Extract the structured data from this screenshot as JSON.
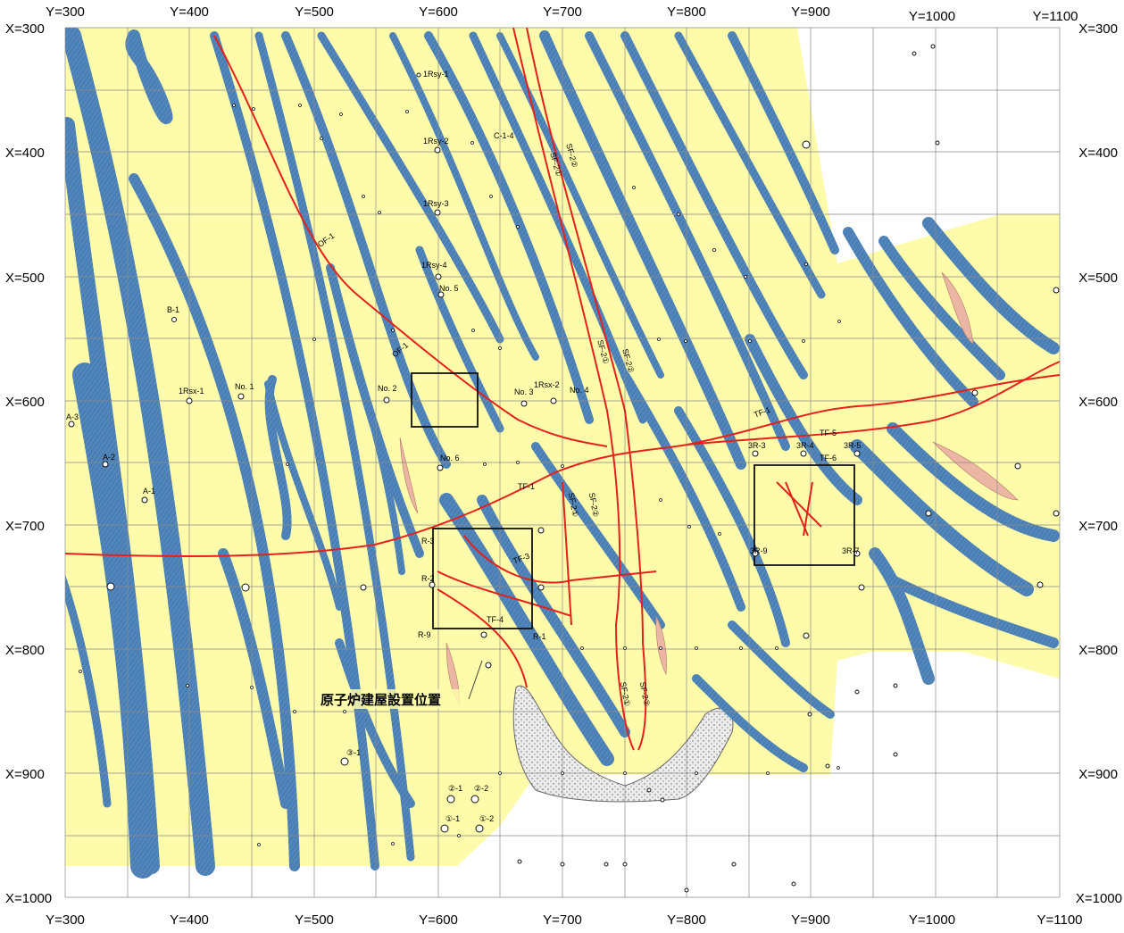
{
  "map": {
    "colors": {
      "base": "#fefbaa",
      "seam": "#4a7fb5",
      "fault": "#e4211c",
      "grid": "#8a8a8a",
      "excavation": "#e8e8e8",
      "dike": "#ecb6a4"
    },
    "top_y_labels": [
      "Y=300",
      "Y=400",
      "Y=500",
      "Y=600",
      "Y=700",
      "Y=800",
      "Y=900",
      "Y=1000",
      "Y=1100"
    ],
    "bottom_y_labels": [
      "Y=300",
      "Y=400",
      "Y=500",
      "Y=600",
      "Y=700",
      "Y=800",
      "Y=900",
      "Y=1000",
      "Y=1100"
    ],
    "left_x_labels": [
      "X=300",
      "X=400",
      "X=500",
      "X=600",
      "X=700",
      "X=800",
      "X=900",
      "X=1000"
    ],
    "right_x_labels": [
      "X=300",
      "X=400",
      "X=500",
      "X=600",
      "X=700",
      "X=800",
      "X=900",
      "X=1000"
    ],
    "callout_text": "原子炉建屋設置位置",
    "fault_labels": [
      {
        "id": "of1-a",
        "text": "OF-1"
      },
      {
        "id": "of1-b",
        "text": "OF-1"
      },
      {
        "id": "sf21-a",
        "text": "SF-2①"
      },
      {
        "id": "sf22-a",
        "text": "SF-2②"
      },
      {
        "id": "sf21-b",
        "text": "SF-2①"
      },
      {
        "id": "sf22-b",
        "text": "SF-2②"
      },
      {
        "id": "sf21-c",
        "text": "SF-2①"
      },
      {
        "id": "sf22-c",
        "text": "SF-2②"
      },
      {
        "id": "sf21-d",
        "text": "SF-2①"
      },
      {
        "id": "sf22-d",
        "text": "SF-2②"
      },
      {
        "id": "tf1-a",
        "text": "TF-1"
      },
      {
        "id": "tf1-b",
        "text": "TF-1"
      },
      {
        "id": "tf5",
        "text": "TF-5"
      },
      {
        "id": "tf6",
        "text": "TF-6"
      },
      {
        "id": "tf4",
        "text": "TF-4"
      },
      {
        "id": "tf3",
        "text": "TF-3"
      }
    ],
    "borehole_labels": [
      {
        "id": "1rsy1",
        "text": "1Rsy-1"
      },
      {
        "id": "1rsy2",
        "text": "1Rsy-2"
      },
      {
        "id": "1rsy3",
        "text": "1Rsy-3"
      },
      {
        "id": "1rsy4",
        "text": "1Rsy-4"
      },
      {
        "id": "no5",
        "text": "No. 5"
      },
      {
        "id": "b1",
        "text": "B-1"
      },
      {
        "id": "1rsx1",
        "text": "1Rsx-1"
      },
      {
        "id": "no1",
        "text": "No. 1"
      },
      {
        "id": "no2",
        "text": "No. 2"
      },
      {
        "id": "no3",
        "text": "No. 3"
      },
      {
        "id": "1rsx2",
        "text": "1Rsx-2"
      },
      {
        "id": "no4",
        "text": "No. 4"
      },
      {
        "id": "a3",
        "text": "A-3"
      },
      {
        "id": "a2",
        "text": "A-2"
      },
      {
        "id": "a1",
        "text": "A-1"
      },
      {
        "id": "no6",
        "text": "No. 6"
      },
      {
        "id": "c14",
        "text": "C-1-4"
      },
      {
        "id": "r3",
        "text": "R-3"
      },
      {
        "id": "r2",
        "text": "R-2"
      },
      {
        "id": "r9",
        "text": "R-9"
      },
      {
        "id": "r1",
        "text": "R-1"
      },
      {
        "id": "3r3",
        "text": "3R-3"
      },
      {
        "id": "3r4",
        "text": "3R-4"
      },
      {
        "id": "3r5",
        "text": "3R-5"
      },
      {
        "id": "3r7",
        "text": "3R-7"
      },
      {
        "id": "3r9",
        "text": "3R-9"
      },
      {
        "id": "c31",
        "text": "③-1"
      },
      {
        "id": "c21",
        "text": "②-1"
      },
      {
        "id": "c22",
        "text": "②-2"
      },
      {
        "id": "c11",
        "text": "①-1"
      },
      {
        "id": "c12",
        "text": "①-2"
      }
    ]
  }
}
